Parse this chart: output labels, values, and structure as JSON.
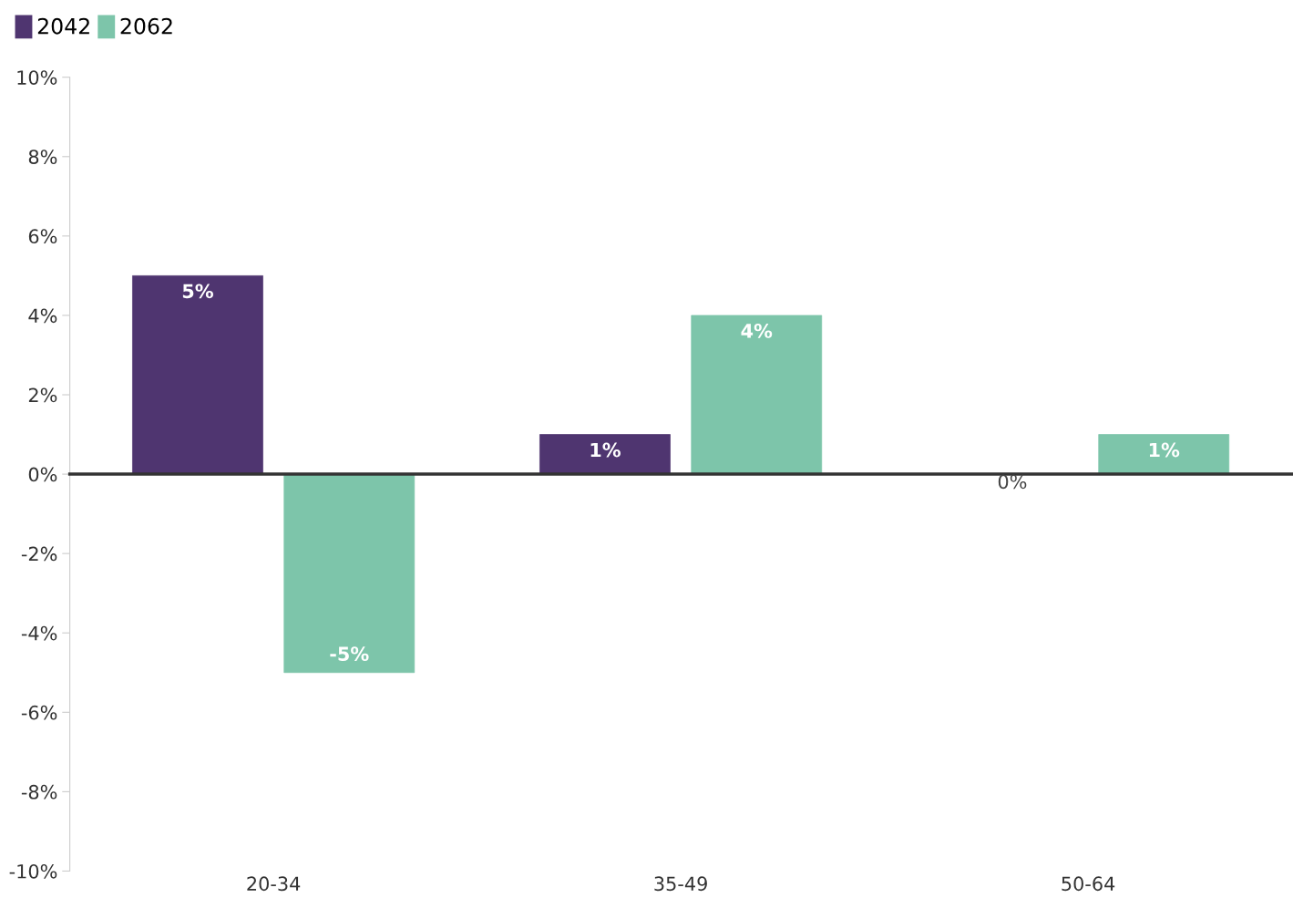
{
  "chart_data": {
    "type": "bar",
    "categories": [
      "20-34",
      "35-49",
      "50-64"
    ],
    "series": [
      {
        "name": "2042",
        "color": "#4f3570",
        "values": [
          5,
          1,
          0
        ],
        "value_labels": [
          "5%",
          "1%",
          "0%"
        ]
      },
      {
        "name": "2062",
        "color": "#7dc5aa",
        "values": [
          -5,
          4,
          1
        ],
        "value_labels": [
          "-5%",
          "4%",
          "1%"
        ]
      }
    ],
    "ylim": [
      -10,
      10
    ],
    "yticks": [
      {
        "value": -10,
        "label": "-10%"
      },
      {
        "value": -8,
        "label": "-8%"
      },
      {
        "value": -6,
        "label": "-6%"
      },
      {
        "value": -4,
        "label": "-4%"
      },
      {
        "value": -2,
        "label": "-2%"
      },
      {
        "value": 0,
        "label": "0%"
      },
      {
        "value": 2,
        "label": "2%"
      },
      {
        "value": 4,
        "label": "4%"
      },
      {
        "value": 6,
        "label": "6%"
      },
      {
        "value": 8,
        "label": "8%"
      },
      {
        "value": 10,
        "label": "10%"
      }
    ],
    "legend": "top left"
  }
}
